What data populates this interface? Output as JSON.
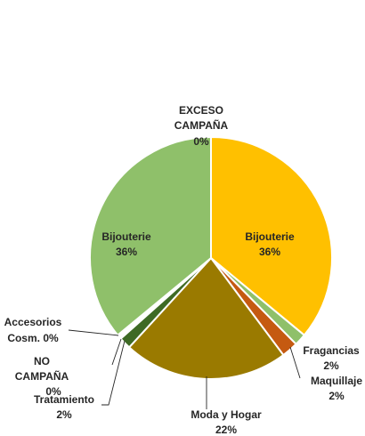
{
  "chart_data": {
    "type": "pie",
    "title": "",
    "slices": [
      {
        "name": "EXCESO CAMPAÑA",
        "value_label": "0%",
        "value": 0,
        "color": "#5b9bd5"
      },
      {
        "name": "Bijouterie",
        "value_label": "36%",
        "value": 36,
        "color": "#ffc000"
      },
      {
        "name": "Fragancias",
        "value_label": "2%",
        "value": 1.6,
        "color": "#8fc06a"
      },
      {
        "name": "Maquillaje",
        "value_label": "2%",
        "value": 2.2,
        "color": "#c55a11"
      },
      {
        "name": "Moda y Hogar",
        "value_label": "22%",
        "value": 22,
        "color": "#9a7a00"
      },
      {
        "name": "Tratamiento",
        "value_label": "2%",
        "value": 1.6,
        "color": "#3e6a25"
      },
      {
        "name": "NO CAMPAÑA",
        "value_label": "0%",
        "value": 0.3,
        "color": "#ffffff"
      },
      {
        "name": "Accesorios Cosm.",
        "value_label": "0%",
        "value": 0.3,
        "color": "#ffffff"
      },
      {
        "name": "Bijouterie",
        "value_label": "36%",
        "value": 36,
        "color": "#8fc06a"
      }
    ]
  }
}
